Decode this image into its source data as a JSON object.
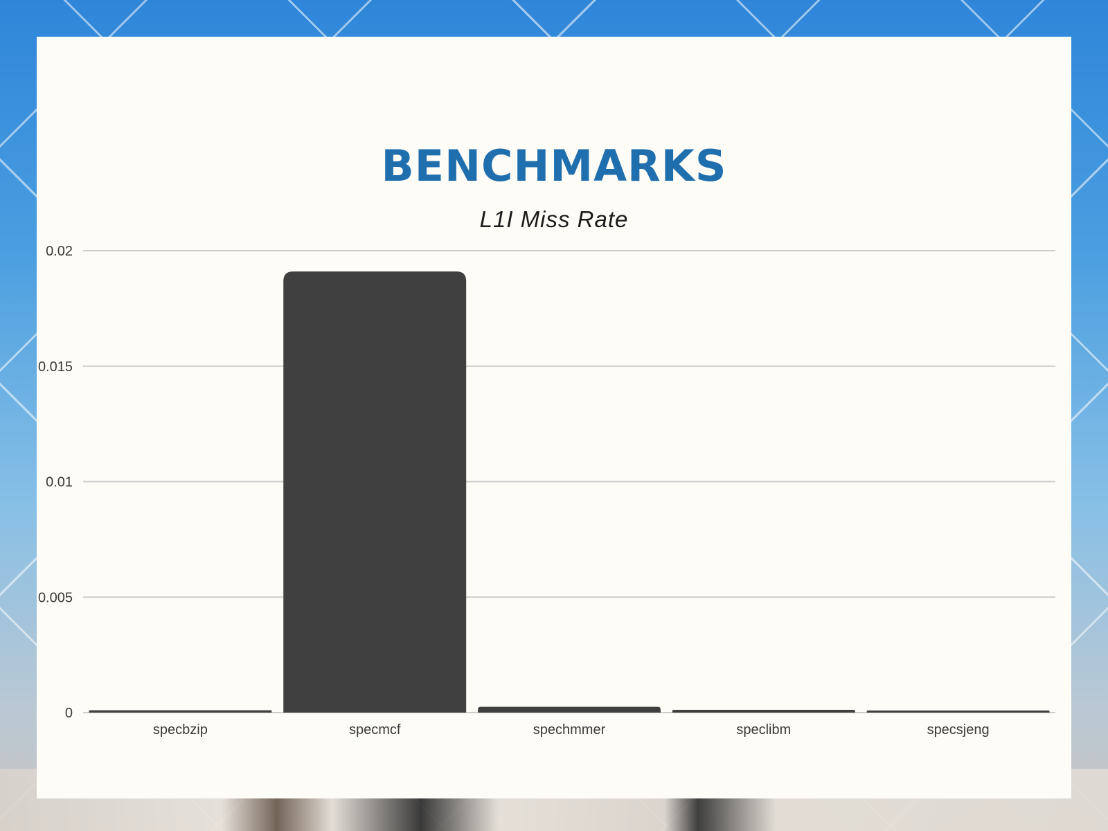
{
  "slide": {
    "title": "BENCHMARKS",
    "subtitle": "L1I Miss Rate"
  },
  "colors": {
    "title": "#1f6ead",
    "bar": "#404040",
    "grid": "#cccccc",
    "card": "#fdfcf7"
  },
  "chart_data": {
    "type": "bar",
    "categories": [
      "specbzip",
      "specmcf",
      "spechmmer",
      "speclibm",
      "specsjeng"
    ],
    "values": [
      0.0001,
      0.0191,
      0.00025,
      0.00012,
      5e-05
    ],
    "ylim": [
      0,
      0.02
    ],
    "yticks": [
      0,
      0.005,
      0.01,
      0.015,
      0.02
    ],
    "ytick_labels": [
      "0",
      "0.005",
      "0.01",
      "0.015",
      "0.02"
    ],
    "grid": true,
    "legend": "none",
    "xlabel": "",
    "ylabel": ""
  }
}
